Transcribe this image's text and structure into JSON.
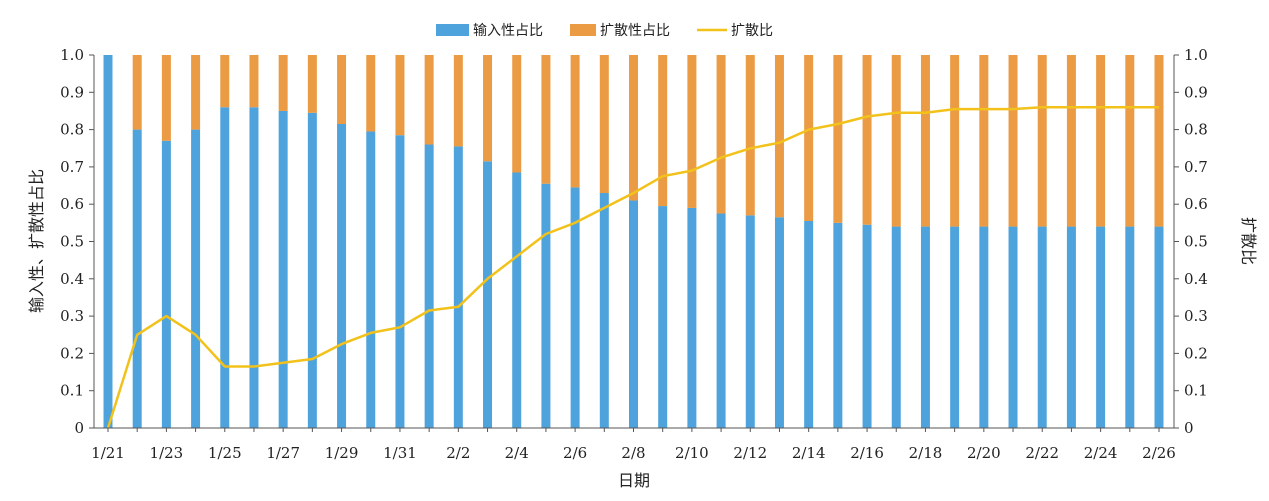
{
  "chart_data": {
    "type": "bar+line",
    "title": "",
    "xlabel": "日期",
    "ylabel_left": "输入性、扩散性占比",
    "ylabel_right": "扩散比",
    "ylim_left": [
      0,
      1.0
    ],
    "ylim_right": [
      0,
      1.0
    ],
    "yticks": [
      "0",
      "0.1",
      "0.2",
      "0.3",
      "0.4",
      "0.5",
      "0.6",
      "0.7",
      "0.8",
      "0.9",
      "1.0"
    ],
    "legend": [
      {
        "name": "输入性占比",
        "color": "#4fa3dc",
        "kind": "bar"
      },
      {
        "name": "扩散性占比",
        "color": "#eb9b43",
        "kind": "bar"
      },
      {
        "name": "扩散比",
        "color": "#f2c21b",
        "kind": "line"
      }
    ],
    "categories": [
      "1/21",
      "1/22",
      "1/23",
      "1/24",
      "1/25",
      "1/26",
      "1/27",
      "1/28",
      "1/29",
      "1/30",
      "1/31",
      "2/1",
      "2/2",
      "2/3",
      "2/4",
      "2/5",
      "2/6",
      "2/7",
      "2/8",
      "2/9",
      "2/10",
      "2/11",
      "2/12",
      "2/13",
      "2/14",
      "2/15",
      "2/16",
      "2/17",
      "2/18",
      "2/19",
      "2/20",
      "2/21",
      "2/22",
      "2/23",
      "2/24",
      "2/25",
      "2/26"
    ],
    "xtick_labels": [
      "1/21",
      "1/23",
      "1/25",
      "1/27",
      "1/29",
      "1/31",
      "2/2",
      "2/4",
      "2/6",
      "2/8",
      "2/10",
      "2/12",
      "2/14",
      "2/16",
      "2/18",
      "2/20",
      "2/22",
      "2/24",
      "2/26"
    ],
    "series": [
      {
        "name": "输入性占比",
        "values": [
          1.0,
          0.8,
          0.77,
          0.8,
          0.86,
          0.86,
          0.85,
          0.845,
          0.815,
          0.795,
          0.785,
          0.76,
          0.755,
          0.715,
          0.685,
          0.655,
          0.645,
          0.63,
          0.61,
          0.595,
          0.59,
          0.575,
          0.57,
          0.565,
          0.555,
          0.55,
          0.545,
          0.54,
          0.54,
          0.54,
          0.54,
          0.54,
          0.54,
          0.54,
          0.54,
          0.54,
          0.54
        ]
      },
      {
        "name": "扩散性占比",
        "values": [
          0.0,
          0.2,
          0.23,
          0.2,
          0.14,
          0.14,
          0.15,
          0.155,
          0.185,
          0.205,
          0.215,
          0.24,
          0.245,
          0.285,
          0.315,
          0.345,
          0.355,
          0.37,
          0.39,
          0.405,
          0.41,
          0.425,
          0.43,
          0.435,
          0.445,
          0.45,
          0.455,
          0.46,
          0.46,
          0.46,
          0.46,
          0.46,
          0.46,
          0.46,
          0.46,
          0.46,
          0.46
        ]
      },
      {
        "name": "扩散比",
        "values": [
          0.0,
          0.25,
          0.3,
          0.25,
          0.165,
          0.165,
          0.175,
          0.185,
          0.225,
          0.255,
          0.27,
          0.315,
          0.325,
          0.4,
          0.46,
          0.52,
          0.55,
          0.59,
          0.63,
          0.675,
          0.69,
          0.725,
          0.75,
          0.765,
          0.8,
          0.815,
          0.835,
          0.845,
          0.845,
          0.855,
          0.855,
          0.855,
          0.86,
          0.86,
          0.86,
          0.86,
          0.86
        ]
      }
    ]
  }
}
